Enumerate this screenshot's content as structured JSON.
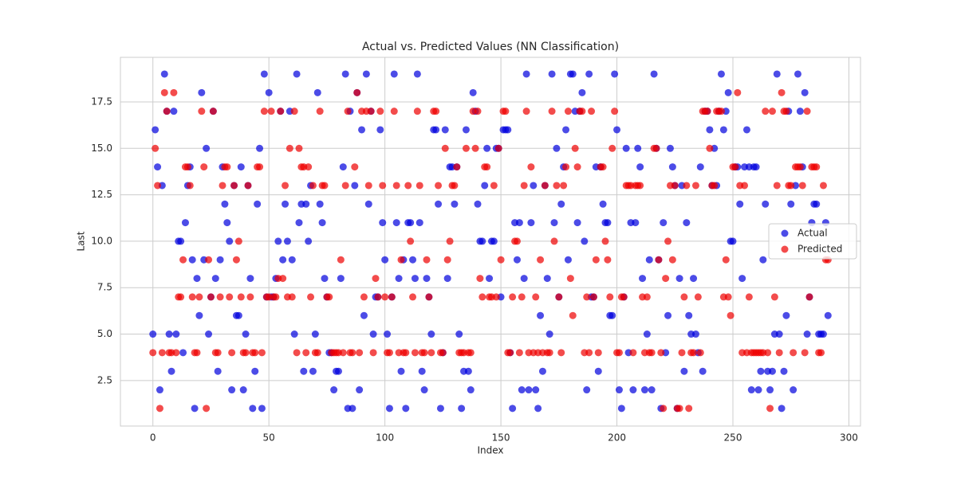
{
  "chart_data": {
    "type": "scatter",
    "title": "Actual vs. Predicted Values (NN Classification)",
    "xlabel": "Index",
    "ylabel": "Last",
    "xlim": [
      -14,
      305
    ],
    "ylim": [
      0.05,
      19.9
    ],
    "xticks": [
      0,
      50,
      100,
      150,
      200,
      250,
      300
    ],
    "yticks": [
      2.5,
      {
        "value": 5,
        "label": "5.0"
      },
      7.5,
      {
        "value": 10,
        "label": "10.0"
      },
      12.5,
      {
        "value": 15,
        "label": "15.0"
      },
      17.5
    ],
    "grid": true,
    "legend": "right",
    "x": [
      0,
      1,
      2,
      3,
      4,
      5,
      6,
      7,
      8,
      9,
      10,
      11,
      12,
      13,
      14,
      15,
      16,
      17,
      18,
      19,
      20,
      21,
      22,
      23,
      24,
      25,
      26,
      27,
      28,
      29,
      30,
      31,
      32,
      33,
      34,
      35,
      36,
      37,
      38,
      39,
      40,
      41,
      42,
      43,
      44,
      45,
      46,
      47,
      48,
      49,
      50,
      51,
      52,
      53,
      54,
      55,
      56,
      57,
      58,
      59,
      60,
      61,
      62,
      63,
      64,
      65,
      66,
      67,
      68,
      69,
      70,
      71,
      72,
      73,
      74,
      75,
      76,
      77,
      78,
      79,
      80,
      81,
      82,
      83,
      84,
      85,
      86,
      87,
      88,
      89,
      90,
      91,
      92,
      93,
      94,
      95,
      96,
      97,
      98,
      99,
      100,
      101,
      102,
      103,
      104,
      105,
      106,
      107,
      108,
      109,
      110,
      111,
      112,
      113,
      114,
      115,
      116,
      117,
      118,
      119,
      120,
      121,
      122,
      123,
      124,
      125,
      126,
      127,
      128,
      129,
      130,
      131,
      132,
      133,
      134,
      135,
      136,
      137,
      138,
      139,
      140,
      141,
      142,
      143,
      144,
      145,
      146,
      147,
      148,
      149,
      150,
      151,
      152,
      153,
      154,
      155,
      156,
      157,
      158,
      159,
      160,
      161,
      162,
      163,
      164,
      165,
      166,
      167,
      168,
      169,
      170,
      171,
      172,
      173,
      174,
      175,
      176,
      177,
      178,
      179,
      180,
      181,
      182,
      183,
      184,
      185,
      186,
      187,
      188,
      189,
      190,
      191,
      192,
      193,
      194,
      195,
      196,
      197,
      198,
      199,
      200,
      201,
      202,
      203,
      204,
      205,
      206,
      207,
      208,
      209,
      210,
      211,
      212,
      213,
      214,
      215,
      216,
      217,
      218,
      219,
      220,
      221,
      222,
      223,
      224,
      225,
      226,
      227,
      228,
      229,
      230,
      231,
      232,
      233,
      234,
      235,
      236,
      237,
      238,
      239,
      240,
      241,
      242,
      243,
      244,
      245,
      246,
      247,
      248,
      249,
      250,
      251,
      252,
      253,
      254,
      255,
      256,
      257,
      258,
      259,
      260,
      261,
      262,
      263,
      264,
      265,
      266,
      267,
      268,
      269,
      270,
      271,
      272,
      273,
      274,
      275,
      276,
      277,
      278,
      279,
      280,
      281,
      282,
      283,
      284,
      285,
      286,
      287,
      288,
      289,
      290,
      291
    ],
    "series": [
      {
        "name": "Actual",
        "color": "#0000dd",
        "values": [
          5,
          16,
          14,
          2,
          13,
          19,
          17,
          5,
          3,
          17,
          5,
          10,
          10,
          4,
          11,
          13,
          14,
          9,
          1,
          8,
          6,
          18,
          9,
          15,
          5,
          7,
          17,
          8,
          3,
          9,
          14,
          12,
          11,
          10,
          2,
          13,
          6,
          6,
          14,
          2,
          5,
          13,
          8,
          1,
          3,
          12,
          15,
          1,
          19,
          7,
          18,
          7,
          7,
          8,
          10,
          17,
          9,
          12,
          10,
          17,
          9,
          5,
          19,
          11,
          12,
          3,
          12,
          10,
          13,
          3,
          5,
          18,
          12,
          11,
          8,
          7,
          4,
          4,
          2,
          3,
          3,
          8,
          14,
          19,
          1,
          17,
          1,
          13,
          18,
          2,
          16,
          6,
          19,
          12,
          17,
          5,
          7,
          7,
          16,
          11,
          9,
          5,
          1,
          7,
          19,
          11,
          8,
          3,
          9,
          1,
          11,
          11,
          9,
          8,
          19,
          11,
          3,
          2,
          8,
          7,
          5,
          16,
          16,
          12,
          1,
          4,
          16,
          8,
          14,
          14,
          12,
          14,
          5,
          1,
          3,
          16,
          3,
          2,
          18,
          17,
          12,
          10,
          10,
          13,
          15,
          8,
          10,
          10,
          15,
          15,
          7,
          16,
          16,
          16,
          4,
          1,
          11,
          9,
          11,
          2,
          8,
          19,
          2,
          11,
          13,
          2,
          1,
          6,
          3,
          13,
          8,
          5,
          19,
          11,
          15,
          7,
          12,
          14,
          16,
          9,
          19,
          19,
          17,
          11,
          17,
          18,
          10,
          2,
          19,
          7,
          7,
          14,
          3,
          14,
          12,
          11,
          11,
          6,
          6,
          19,
          16,
          2,
          1,
          7,
          15,
          4,
          11,
          2,
          11,
          15,
          14,
          8,
          2,
          5,
          9,
          2,
          19,
          15,
          9,
          1,
          11,
          4,
          6,
          15,
          14,
          13,
          1,
          8,
          13,
          3,
          11,
          6,
          5,
          8,
          5,
          4,
          14,
          3,
          17,
          17,
          16,
          13,
          15,
          13,
          17,
          19,
          16,
          17,
          18,
          10,
          10,
          14,
          14,
          12,
          8,
          14,
          16,
          14,
          2,
          14,
          14,
          2,
          3,
          9,
          12,
          3,
          2,
          3,
          5,
          19,
          5,
          1,
          3,
          6,
          17,
          12,
          2,
          13,
          19,
          17,
          14,
          18,
          5,
          7,
          11,
          12,
          12,
          5,
          5,
          5,
          11,
          6
        ]
      },
      {
        "name": "Predicted",
        "color": "#ee0000",
        "values": [
          4,
          15,
          13,
          1,
          4,
          18,
          17,
          4,
          4,
          18,
          4,
          7,
          7,
          9,
          14,
          14,
          13,
          7,
          4,
          4,
          7,
          17,
          14,
          1,
          9,
          7,
          17,
          4,
          4,
          7,
          13,
          14,
          14,
          7,
          4,
          13,
          9,
          10,
          7,
          4,
          4,
          13,
          7,
          4,
          4,
          14,
          14,
          4,
          17,
          7,
          7,
          17,
          7,
          7,
          8,
          17,
          8,
          13,
          7,
          15,
          7,
          17,
          4,
          15,
          14,
          14,
          4,
          14,
          7,
          13,
          4,
          4,
          17,
          13,
          13,
          7,
          7,
          4,
          4,
          4,
          4,
          9,
          4,
          13,
          17,
          4,
          4,
          14,
          18,
          4,
          17,
          7,
          17,
          13,
          17,
          4,
          8,
          7,
          17,
          13,
          7,
          4,
          4,
          7,
          17,
          13,
          4,
          9,
          4,
          4,
          13,
          10,
          7,
          4,
          17,
          13,
          4,
          4,
          9,
          7,
          4,
          17,
          17,
          13,
          4,
          4,
          15,
          9,
          10,
          13,
          13,
          14,
          4,
          4,
          4,
          15,
          4,
          4,
          17,
          15,
          17,
          8,
          7,
          14,
          14,
          7,
          7,
          13,
          7,
          15,
          9,
          17,
          17,
          4,
          4,
          7,
          10,
          10,
          4,
          7,
          13,
          17,
          4,
          14,
          4,
          7,
          4,
          9,
          4,
          13,
          4,
          4,
          17,
          10,
          13,
          7,
          4,
          13,
          14,
          17,
          8,
          6,
          15,
          14,
          17,
          17,
          4,
          7,
          4,
          17,
          7,
          9,
          4,
          14,
          14,
          10,
          9,
          7,
          15,
          17,
          4,
          4,
          7,
          7,
          13,
          13,
          13,
          4,
          13,
          13,
          13,
          7,
          4,
          7,
          4,
          4,
          15,
          15,
          9,
          4,
          1,
          8,
          10,
          13,
          9,
          13,
          1,
          1,
          4,
          7,
          13,
          1,
          4,
          4,
          13,
          7,
          4,
          17,
          17,
          17,
          15,
          13,
          13,
          17,
          17,
          17,
          7,
          9,
          7,
          6,
          14,
          14,
          18,
          13,
          4,
          13,
          4,
          7,
          4,
          4,
          4,
          4,
          4,
          4,
          17,
          4,
          1,
          17,
          7,
          13,
          4,
          18,
          17,
          17,
          13,
          13,
          4,
          14,
          14,
          14,
          13,
          4,
          17,
          7,
          14,
          14,
          14,
          4,
          4,
          13,
          9,
          9
        ]
      }
    ]
  }
}
